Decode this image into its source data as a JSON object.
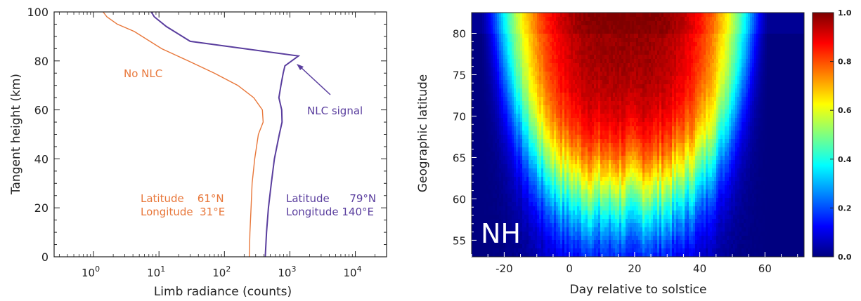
{
  "chart_data": [
    {
      "type": "line",
      "xlabel": "Limb radiance (counts)",
      "ylabel": "Tangent height (km)",
      "xscale": "log",
      "xlim": [
        0.25,
        30000
      ],
      "ylim": [
        0,
        100
      ],
      "xticks": [
        1,
        10,
        100,
        1000,
        10000
      ],
      "xtick_labels": [
        {
          "base": "10",
          "exp": "0"
        },
        {
          "base": "10",
          "exp": "1"
        },
        {
          "base": "10",
          "exp": "2"
        },
        {
          "base": "10",
          "exp": "3"
        },
        {
          "base": "10",
          "exp": "4"
        }
      ],
      "yticks": [
        0,
        20,
        40,
        60,
        80,
        100
      ],
      "ytick_labels": [
        "0",
        "20",
        "40",
        "60",
        "80",
        "100"
      ],
      "series": [
        {
          "color": "#e8773a",
          "points": [
            [
              240,
              0
            ],
            [
              245,
              10
            ],
            [
              255,
              20
            ],
            [
              265,
              30
            ],
            [
              290,
              40
            ],
            [
              330,
              50
            ],
            [
              390,
              55
            ],
            [
              380,
              60
            ],
            [
              280,
              65
            ],
            [
              160,
              70
            ],
            [
              70,
              75
            ],
            [
              28,
              80
            ],
            [
              11,
              85
            ],
            [
              4.2,
              92
            ],
            [
              2.3,
              95
            ],
            [
              1.6,
              98
            ],
            [
              1.4,
              100
            ]
          ]
        },
        {
          "color": "#5a3e9e",
          "points": [
            [
              420,
              0
            ],
            [
              440,
              10
            ],
            [
              470,
              20
            ],
            [
              520,
              30
            ],
            [
              580,
              40
            ],
            [
              690,
              50
            ],
            [
              760,
              55
            ],
            [
              750,
              60
            ],
            [
              680,
              65
            ],
            [
              730,
              70
            ],
            [
              790,
              75
            ],
            [
              840,
              78
            ],
            [
              1350,
              82
            ],
            [
              30,
              88
            ],
            [
              13,
              94
            ],
            [
              8.5,
              98
            ],
            [
              7.6,
              100
            ]
          ]
        }
      ],
      "annotations": {
        "no_nlc": {
          "text": "No NLC",
          "color": "#e8773a"
        },
        "nlc_signal": {
          "text": "NLC signal",
          "color": "#5a3e9e"
        },
        "orange_location": {
          "line1": "Latitude    61°N",
          "line2": "Longitude  31°E",
          "color": "#e8773a"
        },
        "purple_location": {
          "line1": "Latitude      79°N",
          "line2": "Longitude 140°E",
          "color": "#5a3e9e"
        }
      }
    },
    {
      "type": "heatmap",
      "xlabel": "Day relative to solstice",
      "ylabel": "Geographic latitude",
      "xlim": [
        -30,
        72
      ],
      "ylim": [
        53,
        82.5
      ],
      "xticks": [
        -20,
        0,
        20,
        40,
        60
      ],
      "xtick_labels": [
        "-20",
        "0",
        "20",
        "40",
        "60"
      ],
      "yticks": [
        55,
        60,
        65,
        70,
        75,
        80
      ],
      "ytick_labels": [
        "55",
        "60",
        "65",
        "70",
        "75",
        "80"
      ],
      "label": "NH",
      "colorbar": {
        "ticks": [
          0.0,
          0.2,
          0.4,
          0.6,
          0.8,
          1.0
        ],
        "tick_labels": [
          "0.0",
          "0.2",
          "0.4",
          "0.6",
          "0.8",
          "1.0"
        ],
        "colormap": "jet"
      }
    }
  ]
}
